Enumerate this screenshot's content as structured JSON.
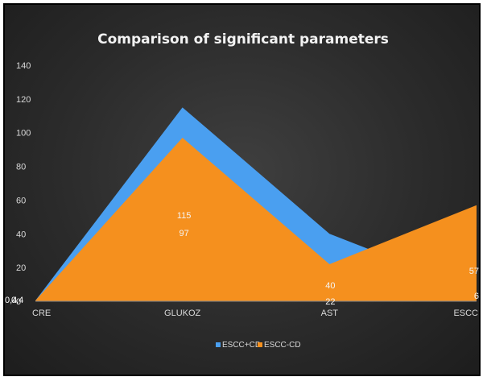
{
  "chart_data": {
    "type": "area",
    "title": "Comparison of significant parameters",
    "categories": [
      "CRE",
      "GLUKOZ",
      "AST",
      "ESCC"
    ],
    "ylim": [
      0,
      140
    ],
    "yticks": [
      0,
      20,
      40,
      60,
      80,
      100,
      120,
      140
    ],
    "series": [
      {
        "name": "ESCC+CD",
        "values": [
          0.4,
          115,
          40,
          6
        ],
        "labels": [
          "0,4",
          "115",
          "40",
          "6"
        ],
        "color": "#4a9ff0"
      },
      {
        "name": "ESCC-CD",
        "values": [
          0.4,
          97,
          22,
          57
        ],
        "labels": [
          "0,4",
          "97",
          "22",
          "57"
        ],
        "color": "#f5901e"
      }
    ],
    "grid": false,
    "legend": "bottom",
    "background": "#2b2b2b"
  }
}
